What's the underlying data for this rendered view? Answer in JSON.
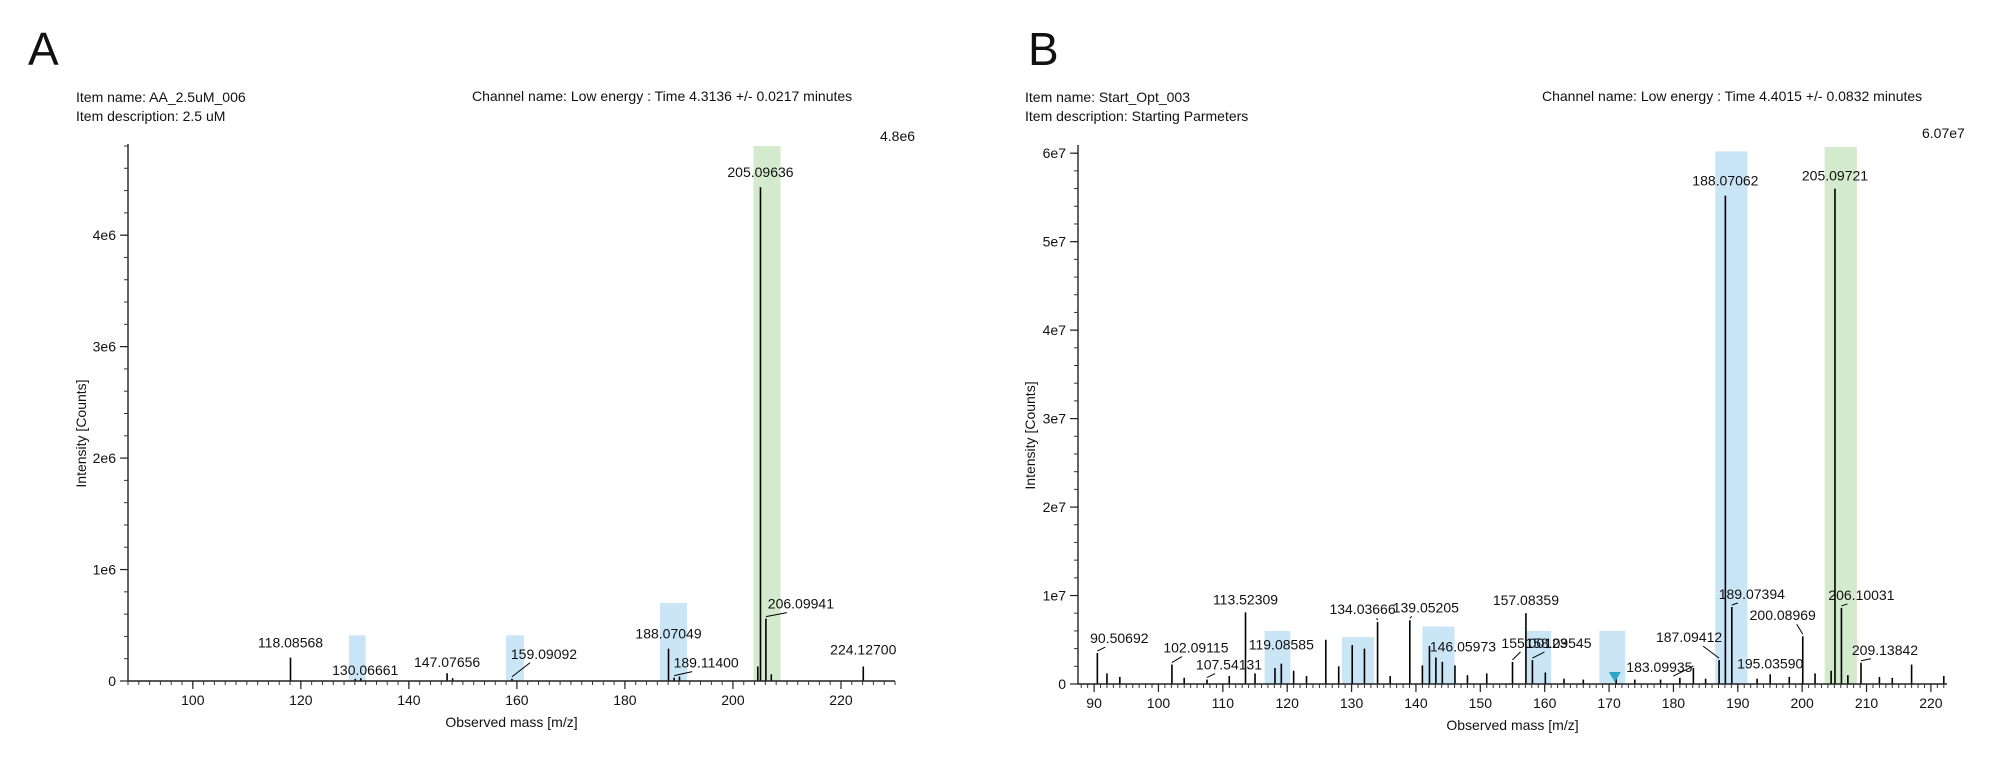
{
  "panels": [
    {
      "letter": "A",
      "item_name": "Item name: AA_2.5uM_006",
      "item_description": "Item description: 2.5 uM",
      "channel": "Channel name: Low energy : Time 4.3136 +/- 0.0217 minutes",
      "max_label": "4.8e6"
    },
    {
      "letter": "B",
      "item_name": "Item name: Start_Opt_003",
      "item_description": "Item description: Starting Parmeters",
      "channel": "Channel name: Low energy : Time 4.4015 +/- 0.0832 minutes",
      "max_label": "6.07e7"
    }
  ],
  "colors": {
    "highlight_blue": "#bfe1f5",
    "highlight_green": "#cde6c4",
    "peak": "#000000",
    "marker": "#2aa6c8"
  },
  "chart_data": [
    {
      "type": "bar",
      "subtype": "mass-spectrum",
      "xlabel": "Observed mass [m/z]",
      "ylabel": "Intensity [Counts]",
      "xlim": [
        88,
        230
      ],
      "ylim": [
        0,
        4800000
      ],
      "xticks": [
        100,
        120,
        140,
        160,
        180,
        200,
        220
      ],
      "yticks": [
        0,
        1000000,
        2000000,
        3000000,
        4000000
      ],
      "ytick_labels": [
        "0",
        "1e6",
        "2e6",
        "3e6",
        "4e6"
      ],
      "highlights": [
        {
          "x0": 128.9,
          "x1": 132.0,
          "height": 410000,
          "color": "blue"
        },
        {
          "x0": 158.0,
          "x1": 161.3,
          "height": 410000,
          "color": "blue"
        },
        {
          "x0": 186.5,
          "x1": 191.5,
          "height": 700000,
          "color": "blue"
        },
        {
          "x0": 203.8,
          "x1": 208.8,
          "height": 4800000,
          "color": "green"
        }
      ],
      "peaks": [
        {
          "mz": 205.09636,
          "intensity": 4430000,
          "label": "205.09636"
        },
        {
          "mz": 206.09941,
          "intensity": 560000,
          "label": "206.09941"
        },
        {
          "mz": 118.08568,
          "intensity": 210000,
          "label": "118.08568"
        },
        {
          "mz": 130.06661,
          "intensity": 20000,
          "label": "130.06661"
        },
        {
          "mz": 147.07656,
          "intensity": 70000,
          "label": "147.07656"
        },
        {
          "mz": 159.09092,
          "intensity": 20000,
          "label": "159.09092"
        },
        {
          "mz": 188.07049,
          "intensity": 290000,
          "label": "188.07049"
        },
        {
          "mz": 189.114,
          "intensity": 30000,
          "label": "189.11400"
        },
        {
          "mz": 224.127,
          "intensity": 130000,
          "label": "224.12700"
        },
        {
          "mz": 204.6,
          "intensity": 130000,
          "label": ""
        },
        {
          "mz": 207.1,
          "intensity": 60000,
          "label": ""
        },
        {
          "mz": 148.1,
          "intensity": 25000,
          "label": ""
        },
        {
          "mz": 131.1,
          "intensity": 25000,
          "label": ""
        },
        {
          "mz": 190.1,
          "intensity": 40000,
          "label": ""
        }
      ]
    },
    {
      "type": "bar",
      "subtype": "mass-spectrum",
      "xlabel": "Observed mass [m/z]",
      "ylabel": "Intensity [Counts]",
      "xlim": [
        87.5,
        222.5
      ],
      "ylim": [
        0,
        60700000
      ],
      "xticks": [
        90,
        100,
        110,
        120,
        130,
        140,
        150,
        160,
        170,
        180,
        190,
        200,
        210,
        220
      ],
      "yticks": [
        0,
        10000000,
        20000000,
        30000000,
        40000000,
        50000000,
        60000000
      ],
      "ytick_labels": [
        "0",
        "1e7",
        "2e7",
        "3e7",
        "4e7",
        "5e7",
        "6e7"
      ],
      "highlights": [
        {
          "x0": 116.5,
          "x1": 120.5,
          "height": 6000000,
          "color": "blue"
        },
        {
          "x0": 128.5,
          "x1": 133.5,
          "height": 5300000,
          "color": "blue"
        },
        {
          "x0": 141.0,
          "x1": 146.0,
          "height": 6500000,
          "color": "blue"
        },
        {
          "x0": 157.0,
          "x1": 161.0,
          "height": 6000000,
          "color": "blue"
        },
        {
          "x0": 168.5,
          "x1": 172.5,
          "height": 6000000,
          "color": "blue"
        },
        {
          "x0": 186.5,
          "x1": 191.5,
          "height": 60200000,
          "color": "blue"
        },
        {
          "x0": 203.5,
          "x1": 208.5,
          "height": 60700000,
          "color": "green"
        }
      ],
      "marker": {
        "mz": 170.9,
        "label": ""
      },
      "peaks": [
        {
          "mz": 188.07062,
          "intensity": 55200000,
          "label": "188.07062"
        },
        {
          "mz": 205.09721,
          "intensity": 56000000,
          "label": "205.09721"
        },
        {
          "mz": 90.50692,
          "intensity": 3500000,
          "label": "90.50692"
        },
        {
          "mz": 102.09115,
          "intensity": 2200000,
          "label": "102.09115"
        },
        {
          "mz": 107.54131,
          "intensity": 500000,
          "label": "107.54131"
        },
        {
          "mz": 113.52309,
          "intensity": 8100000,
          "label": "113.52309"
        },
        {
          "mz": 119.08585,
          "intensity": 2300000,
          "label": "119.08585"
        },
        {
          "mz": 134.03666,
          "intensity": 7000000,
          "label": "134.03666"
        },
        {
          "mz": 139.05205,
          "intensity": 7200000,
          "label": "139.05205"
        },
        {
          "mz": 146.05973,
          "intensity": 2100000,
          "label": "146.05973"
        },
        {
          "mz": 155.00123,
          "intensity": 2500000,
          "label": "155.00123"
        },
        {
          "mz": 157.08359,
          "intensity": 8000000,
          "label": "157.08359"
        },
        {
          "mz": 158.09545,
          "intensity": 2700000,
          "label": "158.09545"
        },
        {
          "mz": 183.09935,
          "intensity": 1800000,
          "label": "183.09935"
        },
        {
          "mz": 187.09412,
          "intensity": 2700000,
          "label": "187.09412"
        },
        {
          "mz": 189.07394,
          "intensity": 8700000,
          "label": "189.07394"
        },
        {
          "mz": 200.08969,
          "intensity": 5400000,
          "label": "200.08969"
        },
        {
          "mz": 195.0359,
          "intensity": 1100000,
          "label": "195.03590"
        },
        {
          "mz": 206.10031,
          "intensity": 8600000,
          "label": "206.10031"
        },
        {
          "mz": 209.13842,
          "intensity": 2400000,
          "label": "209.13842"
        },
        {
          "mz": 92.0,
          "intensity": 1200000,
          "label": ""
        },
        {
          "mz": 94.0,
          "intensity": 800000,
          "label": ""
        },
        {
          "mz": 104.0,
          "intensity": 700000,
          "label": ""
        },
        {
          "mz": 111.0,
          "intensity": 900000,
          "label": ""
        },
        {
          "mz": 115.0,
          "intensity": 1200000,
          "label": ""
        },
        {
          "mz": 118.1,
          "intensity": 1800000,
          "label": ""
        },
        {
          "mz": 121.0,
          "intensity": 1500000,
          "label": ""
        },
        {
          "mz": 123.0,
          "intensity": 900000,
          "label": ""
        },
        {
          "mz": 126.0,
          "intensity": 5000000,
          "label": ""
        },
        {
          "mz": 128.0,
          "intensity": 2000000,
          "label": ""
        },
        {
          "mz": 130.1,
          "intensity": 4400000,
          "label": ""
        },
        {
          "mz": 132.0,
          "intensity": 4000000,
          "label": ""
        },
        {
          "mz": 136.0,
          "intensity": 900000,
          "label": ""
        },
        {
          "mz": 141.0,
          "intensity": 2100000,
          "label": ""
        },
        {
          "mz": 142.1,
          "intensity": 4300000,
          "label": ""
        },
        {
          "mz": 143.1,
          "intensity": 3000000,
          "label": ""
        },
        {
          "mz": 144.1,
          "intensity": 2500000,
          "label": ""
        },
        {
          "mz": 148.0,
          "intensity": 1000000,
          "label": ""
        },
        {
          "mz": 151.0,
          "intensity": 1200000,
          "label": ""
        },
        {
          "mz": 160.1,
          "intensity": 1300000,
          "label": ""
        },
        {
          "mz": 163.0,
          "intensity": 600000,
          "label": ""
        },
        {
          "mz": 166.0,
          "intensity": 500000,
          "label": ""
        },
        {
          "mz": 171.1,
          "intensity": 800000,
          "label": ""
        },
        {
          "mz": 174.0,
          "intensity": 500000,
          "label": ""
        },
        {
          "mz": 178.0,
          "intensity": 500000,
          "label": ""
        },
        {
          "mz": 181.0,
          "intensity": 700000,
          "label": ""
        },
        {
          "mz": 185.0,
          "intensity": 600000,
          "label": ""
        },
        {
          "mz": 193.0,
          "intensity": 600000,
          "label": ""
        },
        {
          "mz": 198.0,
          "intensity": 800000,
          "label": ""
        },
        {
          "mz": 202.0,
          "intensity": 1200000,
          "label": ""
        },
        {
          "mz": 204.5,
          "intensity": 1500000,
          "label": ""
        },
        {
          "mz": 207.1,
          "intensity": 1000000,
          "label": ""
        },
        {
          "mz": 212.0,
          "intensity": 800000,
          "label": ""
        },
        {
          "mz": 214.0,
          "intensity": 700000,
          "label": ""
        },
        {
          "mz": 217.0,
          "intensity": 2200000,
          "label": ""
        },
        {
          "mz": 222.0,
          "intensity": 900000,
          "label": ""
        }
      ]
    }
  ]
}
